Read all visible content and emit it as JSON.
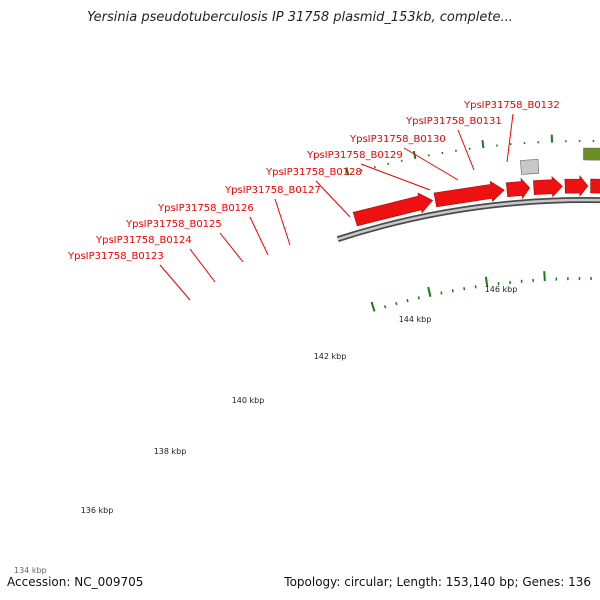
{
  "title": "Yersinia pseudotuberculosis IP 31758 plasmid_153kb, complete...",
  "footer": {
    "accession": "Accession: NC_009705",
    "summary": "Topology: circular; Length: 153,140 bp; Genes: 136"
  },
  "colors": {
    "cds": "#ee1111",
    "cds_dark": "#b00000",
    "backbone": "#7a7a7a",
    "tick": "#1a7a1a",
    "label": "#ee0000",
    "leader": "#ee0000",
    "gene_grey": "#c8c8c8",
    "gene_green": "#6b8e23",
    "gene_magenta": "#e020a0",
    "gene_blue": "#1a33dd"
  },
  "scale": {
    "unit": "kbp",
    "labels": [
      "136 kbp",
      "138 kbp",
      "140 kbp",
      "142 kbp",
      "144 kbp",
      "146 kbp"
    ],
    "partial_label": "134 kbp"
  },
  "gene_labels": [
    "YpsIP31758_B0123",
    "YpsIP31758_B0124",
    "YpsIP31758_B0125",
    "YpsIP31758_B0126",
    "YpsIP31758_B0127",
    "YpsIP31758_B0128",
    "YpsIP31758_B0129",
    "YpsIP31758_B0130",
    "YpsIP31758_B0131",
    "YpsIP31758_B0132"
  ]
}
